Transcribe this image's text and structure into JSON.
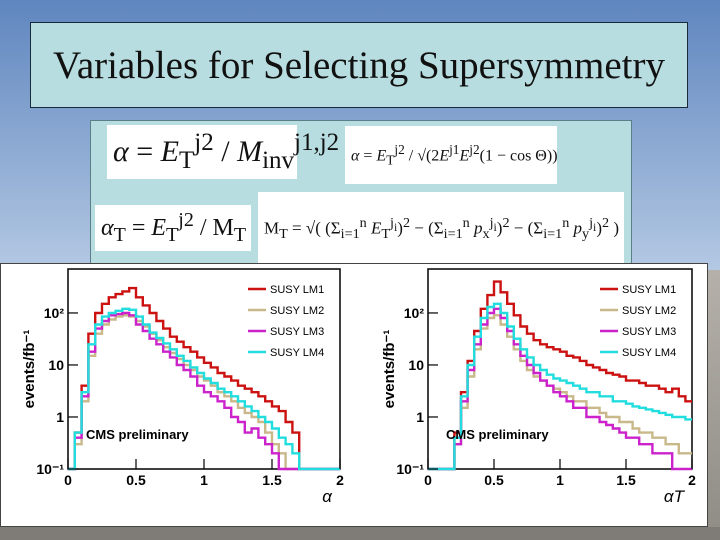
{
  "slide": {
    "title": "Variables for Selecting Supersymmetry",
    "colors": {
      "title_bg": "#b8dde0",
      "sky": "#7da3cf",
      "ground": "#9e9a94"
    }
  },
  "formulas": {
    "alpha": "α = E_T^{j2} / M_{inv}^{j1,j2}",
    "alpha_full": "α = E_T^{j2} / √(2E^{j1}E^{j2}(1 − cos Θ))",
    "alpha_t": "α_T = E_T^{j2} / M_T",
    "mt": "M_T = √( (Σ_{i=1}^{n} E_T^{ji})² − (Σ_{i=1}^{n} p_x^{ji})² − (Σ_{i=1}^{n} p_y^{ji})² )"
  },
  "chart_data": [
    {
      "type": "line",
      "step": true,
      "yscale": "log",
      "ylabel": "events/fb⁻¹",
      "xlabel": "α",
      "xlim": [
        0,
        2
      ],
      "ylim": [
        0.1,
        700
      ],
      "xticks": [
        "0",
        "0.5",
        "1",
        "1.5",
        "2"
      ],
      "yticks": [
        "10⁻¹",
        "1",
        "10",
        "10²"
      ],
      "annotation": "CMS preliminary",
      "legend_position": "top-right",
      "bins": 40,
      "series": [
        {
          "name": "SUSY LM1",
          "color": "#cc1111",
          "values": [
            0.1,
            0.5,
            4,
            40,
            100,
            150,
            200,
            230,
            260,
            300,
            200,
            140,
            100,
            70,
            50,
            35,
            28,
            22,
            18,
            14,
            11,
            9,
            7,
            6,
            5,
            4,
            3.5,
            3,
            2.5,
            2,
            1.6,
            1.3,
            0.8,
            0.5,
            0.1,
            0.1,
            0.1,
            0.1,
            0.1,
            0.1
          ]
        },
        {
          "name": "SUSY LM2",
          "color": "#c8b88a",
          "values": [
            0.1,
            0.3,
            2,
            15,
            40,
            60,
            75,
            85,
            90,
            85,
            70,
            55,
            40,
            30,
            22,
            17,
            13,
            10,
            8,
            6,
            5,
            4,
            3,
            2.5,
            2,
            1.5,
            1.2,
            1,
            0.8,
            0.5,
            0.3,
            0.2,
            0.1,
            0.1,
            0.1,
            0.1,
            0.1,
            0.1,
            0.1,
            0.1
          ]
        },
        {
          "name": "SUSY LM3",
          "color": "#cc22cc",
          "values": [
            0.1,
            0.4,
            2.5,
            18,
            50,
            70,
            90,
            95,
            100,
            90,
            60,
            45,
            32,
            25,
            18,
            14,
            10,
            8,
            6,
            4,
            3,
            2.5,
            2,
            1.5,
            1,
            0.8,
            0.5,
            0.6,
            0.4,
            0.3,
            0.2,
            0.1,
            0.1,
            0.1,
            0.1,
            0.1,
            0.1,
            0.1,
            0.1,
            0.1
          ]
        },
        {
          "name": "SUSY LM4",
          "color": "#22dddd",
          "values": [
            0.1,
            0.5,
            3,
            25,
            60,
            85,
            100,
            110,
            120,
            115,
            85,
            60,
            42,
            33,
            26,
            20,
            15,
            12,
            9,
            7,
            5.5,
            4.5,
            3.5,
            3,
            2.5,
            2,
            1.6,
            1.3,
            1,
            0.8,
            0.6,
            0.4,
            0.3,
            0.2,
            0.1,
            0.1,
            0.1,
            0.1,
            0.1,
            0.1
          ]
        }
      ]
    },
    {
      "type": "line",
      "step": true,
      "yscale": "log",
      "ylabel": "events/fb⁻¹",
      "xlabel": "αT",
      "xlim": [
        0,
        2
      ],
      "ylim": [
        0.1,
        700
      ],
      "xticks": [
        "0",
        "0.5",
        "1",
        "1.5",
        "2"
      ],
      "yticks": [
        "10⁻¹",
        "1",
        "10",
        "10²"
      ],
      "annotation": "CMS preliminary",
      "legend_position": "top-right",
      "bins": 40,
      "series": [
        {
          "name": "SUSY LM1",
          "color": "#cc1111",
          "values": [
            0.1,
            0.1,
            0.1,
            0.1,
            0.5,
            3,
            12,
            45,
            120,
            220,
            400,
            250,
            150,
            90,
            55,
            40,
            30,
            25,
            22,
            20,
            18,
            15,
            14,
            12,
            10,
            9,
            8,
            7,
            6.5,
            6,
            5,
            5,
            4.5,
            4,
            4,
            3.5,
            3,
            3.5,
            2.5,
            2
          ]
        },
        {
          "name": "SUSY LM2",
          "color": "#c8b88a",
          "values": [
            0.1,
            0.1,
            0.1,
            0.1,
            0.3,
            1.5,
            6,
            20,
            50,
            80,
            90,
            60,
            35,
            20,
            12,
            8,
            6,
            5,
            4,
            3.5,
            3,
            2.5,
            2,
            2,
            1.5,
            1.5,
            1.2,
            1,
            1,
            0.8,
            0.8,
            0.6,
            0.5,
            0.5,
            0.4,
            0.4,
            0.3,
            0.3,
            0.2,
            0.2
          ]
        },
        {
          "name": "SUSY LM3",
          "color": "#cc22cc",
          "values": [
            0.1,
            0.1,
            0.1,
            0.1,
            0.3,
            2,
            8,
            25,
            60,
            100,
            120,
            80,
            45,
            25,
            15,
            10,
            7,
            5,
            4,
            3,
            2.5,
            2,
            1.5,
            1.5,
            1,
            1,
            0.8,
            0.7,
            0.6,
            0.5,
            0.4,
            0.4,
            0.3,
            0.3,
            0.2,
            0.2,
            0.2,
            0.1,
            0.1,
            0.1
          ]
        },
        {
          "name": "SUSY LM4",
          "color": "#22dddd",
          "values": [
            0.1,
            0.1,
            0.1,
            0.1,
            0.4,
            2.5,
            10,
            35,
            80,
            130,
            150,
            100,
            55,
            32,
            20,
            14,
            10,
            8,
            6.5,
            5.5,
            5,
            4.5,
            4,
            3.5,
            3,
            3,
            2.5,
            2.5,
            2,
            2,
            1.8,
            1.6,
            1.5,
            1.4,
            1.3,
            1.2,
            1.1,
            1,
            1,
            0.9
          ]
        }
      ]
    }
  ]
}
